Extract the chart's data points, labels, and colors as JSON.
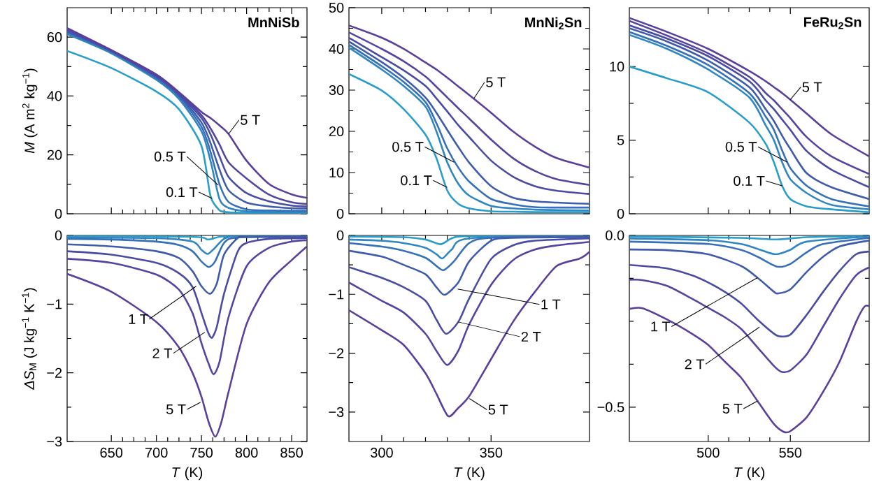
{
  "chart_data": [
    {
      "type": "line",
      "title": "MnNiSb",
      "ylabel": "*M* (A m$^{2}$ kg$^{−1}$)",
      "xlim": [
        601,
        867
      ],
      "xticks": [
        650,
        700,
        750,
        800,
        850
      ],
      "ylim": [
        0,
        70
      ],
      "yticks": [
        0,
        20,
        40,
        60
      ],
      "tick_labels": "y",
      "x": [
        601,
        650,
        700,
        725,
        750,
        760,
        770,
        780,
        800,
        825,
        850,
        867
      ],
      "series": [
        {
          "color": "#2a9dc8",
          "values": [
            55.3,
            49.5,
            41.5,
            35.5,
            23,
            6,
            1.2,
            0.5,
            0.3,
            0.2,
            0.2,
            0.2
          ]
        },
        {
          "color": "#2f86c2",
          "values": [
            61.0,
            54.5,
            45.5,
            39.0,
            28.0,
            18.0,
            5.0,
            2.0,
            0.8,
            0.6,
            0.5,
            0.5
          ]
        },
        {
          "color": "#3670b8",
          "values": [
            61.5,
            55.0,
            46.0,
            39.8,
            29.5,
            21.0,
            10.0,
            4.0,
            1.5,
            1.1,
            1.0,
            1.0
          ]
        },
        {
          "color": "#3f5bab",
          "values": [
            62.0,
            55.2,
            46.5,
            40.3,
            31.0,
            24.0,
            15.0,
            8.0,
            3.8,
            2.5,
            1.9,
            1.8
          ]
        },
        {
          "color": "#4a4ca3",
          "values": [
            62.4,
            55.4,
            46.8,
            40.7,
            32.5,
            27.0,
            19.5,
            12.5,
            7.0,
            4.2,
            2.8,
            2.5
          ]
        },
        {
          "color": "#5445a0",
          "values": [
            62.7,
            55.5,
            47.0,
            41.0,
            33.5,
            29.0,
            23.5,
            17.5,
            12.0,
            6.5,
            3.9,
            3.3
          ]
        },
        {
          "color": "#5b3f9c",
          "values": [
            63.1,
            55.6,
            47.3,
            41.3,
            34.6,
            32.5,
            30.0,
            27.1,
            18.0,
            10.1,
            6.6,
            5.4
          ]
        }
      ],
      "annotations": [
        {
          "text": "5 T",
          "x": 780,
          "y": 27.1
        },
        {
          "text": "0.5 T",
          "x": 768.7,
          "y": 9.7
        },
        {
          "text": "0.1 T",
          "x": 761.7,
          "y": 5.2
        }
      ]
    },
    {
      "type": "line",
      "title": "MnNi$_{2}$Sn",
      "xlim": [
        285,
        395
      ],
      "xticks": [
        300,
        350
      ],
      "ylim": [
        0,
        50
      ],
      "yticks": [
        0,
        10,
        20,
        30,
        40,
        50
      ],
      "tick_labels": "y",
      "x": [
        285,
        300,
        310,
        320,
        325,
        330,
        335,
        340,
        350,
        360,
        370,
        380,
        395
      ],
      "series": [
        {
          "color": "#2a9dc8",
          "values": [
            33.9,
            29.9,
            25.4,
            19.2,
            13.5,
            5.6,
            2.4,
            1.3,
            0.6,
            0.5,
            0.4,
            0.4,
            0.4
          ]
        },
        {
          "color": "#2f86c2",
          "values": [
            40.3,
            35.0,
            31.0,
            26.0,
            20.0,
            12.4,
            7.3,
            4.4,
            1.9,
            1.3,
            1.0,
            0.9,
            0.8
          ]
        },
        {
          "color": "#3670b8",
          "values": [
            41.0,
            35.8,
            32.0,
            27.1,
            22.0,
            15.8,
            11.2,
            7.8,
            3.6,
            2.3,
            1.6,
            1.5,
            1.5
          ]
        },
        {
          "color": "#3f5bab",
          "values": [
            41.8,
            36.8,
            33.0,
            28.2,
            24.5,
            20.3,
            16.2,
            12.4,
            6.7,
            3.9,
            3.0,
            2.7,
            2.4
          ]
        },
        {
          "color": "#4a4ca3",
          "values": [
            42.7,
            38.0,
            34.8,
            31.0,
            28.0,
            24.8,
            21.5,
            18.6,
            12.9,
            9.0,
            6.7,
            5.6,
            4.8
          ]
        },
        {
          "color": "#5445a0",
          "values": [
            44.0,
            40.0,
            37.0,
            33.3,
            30.8,
            28.2,
            25.6,
            23.1,
            18.0,
            13.5,
            10.4,
            8.4,
            7.0
          ]
        },
        {
          "color": "#5b3f9c",
          "values": [
            45.7,
            42.7,
            40.0,
            36.7,
            35.0,
            33.0,
            30.9,
            28.8,
            24.5,
            20.0,
            16.3,
            13.5,
            11.2
          ]
        }
      ],
      "annotations": [
        {
          "text": "5 T",
          "x": 342.2,
          "y": 28.0
        },
        {
          "text": "0.5 T",
          "x": 333.1,
          "y": 12.5
        },
        {
          "text": "0.1 T",
          "x": 329.9,
          "y": 6.4
        }
      ]
    },
    {
      "type": "line",
      "title": "FeRu$_{2}$Sn",
      "xlim": [
        452,
        598
      ],
      "xticks": [
        500,
        550
      ],
      "ylim": [
        0,
        14
      ],
      "yticks": [
        0,
        5,
        10
      ],
      "tick_labels": "y",
      "x": [
        452,
        475,
        500,
        525,
        535,
        540,
        545,
        550,
        560,
        575,
        598
      ],
      "series": [
        {
          "color": "#2a9dc8",
          "values": [
            10.0,
            9.2,
            8.25,
            6.2,
            4.75,
            3.5,
            1.9,
            1.0,
            0.5,
            0.3,
            0.1
          ]
        },
        {
          "color": "#2f86c2",
          "values": [
            12.15,
            11.2,
            9.8,
            7.9,
            6.0,
            5.0,
            3.5,
            2.35,
            1.4,
            0.6,
            0.3
          ]
        },
        {
          "color": "#3670b8",
          "values": [
            12.35,
            11.4,
            10.1,
            8.2,
            6.6,
            5.7,
            4.3,
            3.1,
            1.9,
            1.0,
            0.5
          ]
        },
        {
          "color": "#3f5bab",
          "values": [
            12.6,
            11.7,
            10.4,
            8.6,
            7.1,
            6.3,
            5.3,
            4.4,
            2.75,
            1.8,
            1.0
          ]
        },
        {
          "color": "#4a4ca3",
          "values": [
            12.8,
            11.9,
            10.7,
            9.0,
            7.7,
            7.1,
            6.4,
            5.7,
            4.25,
            3.0,
            1.8
          ]
        },
        {
          "color": "#5445a0",
          "values": [
            13.1,
            12.1,
            10.9,
            9.3,
            8.2,
            7.7,
            7.1,
            6.5,
            5.2,
            3.9,
            2.7
          ]
        },
        {
          "color": "#5b3f9c",
          "values": [
            13.3,
            12.35,
            11.2,
            9.7,
            9.0,
            8.6,
            8.2,
            7.75,
            6.8,
            5.4,
            3.9
          ]
        }
      ],
      "annotations": [
        {
          "text": "5 T",
          "x": 550,
          "y": 7.75
        },
        {
          "text": "0.5 T",
          "x": 548.2,
          "y": 3.5
        },
        {
          "text": "0.1 T",
          "x": 545,
          "y": 1.9
        }
      ]
    },
    {
      "type": "line",
      "xlabel": "*T* (K)",
      "ylabel": "*ΔS*$_{M}$ (J kg$^{−1}$ K$^{−1}$)",
      "xlim": [
        601,
        867
      ],
      "xticks": [
        650,
        700,
        750,
        800,
        850
      ],
      "ylim": [
        -3,
        0
      ],
      "yticks": [
        {
          "value": -3,
          "label": "−3"
        },
        {
          "value": -2,
          "label": "−2"
        },
        {
          "value": -1,
          "label": "−1"
        },
        0
      ],
      "series": [
        {
          "color": "#2a9dc8",
          "x": [
            601,
            740,
            757,
            770,
            790,
            867
          ],
          "values": [
            -0.01,
            -0.02,
            -0.06,
            -0.02,
            -0.01,
            -0.01
          ]
        },
        {
          "color": "#2f86c2",
          "x": [
            601,
            700,
            740,
            750,
            757,
            765,
            775,
            790,
            867
          ],
          "values": [
            -0.03,
            -0.04,
            -0.09,
            -0.21,
            -0.27,
            -0.18,
            -0.05,
            -0.01,
            -0.01
          ]
        },
        {
          "color": "#3670b8",
          "x": [
            601,
            650,
            700,
            725,
            740,
            750,
            758,
            765,
            775,
            790,
            867
          ],
          "values": [
            -0.05,
            -0.06,
            -0.09,
            -0.14,
            -0.23,
            -0.38,
            -0.46,
            -0.38,
            -0.11,
            -0.03,
            -0.02
          ]
        },
        {
          "color": "#3f5bab",
          "x": [
            601,
            650,
            700,
            725,
            740,
            750,
            759.6,
            767,
            775,
            790,
            800,
            867
          ],
          "values": [
            -0.13,
            -0.16,
            -0.23,
            -0.33,
            -0.52,
            -0.74,
            -0.85,
            -0.7,
            -0.28,
            -0.04,
            -0.02,
            -0.02
          ]
        },
        {
          "color": "#4a4ca3",
          "x": [
            601,
            650,
            700,
            725,
            740,
            750,
            757,
            761.5,
            767,
            775,
            790,
            800,
            825,
            867
          ],
          "values": [
            -0.23,
            -0.28,
            -0.4,
            -0.55,
            -0.75,
            -1.13,
            -1.4,
            -1.49,
            -1.33,
            -0.85,
            -0.24,
            -0.11,
            -0.05,
            -0.04
          ]
        },
        {
          "color": "#5445a0",
          "x": [
            601,
            650,
            700,
            725,
            740,
            750,
            758,
            763.5,
            770,
            780,
            800,
            825,
            850,
            867
          ],
          "values": [
            -0.34,
            -0.4,
            -0.57,
            -0.79,
            -1.13,
            -1.57,
            -1.87,
            -2.02,
            -1.84,
            -1.19,
            -0.45,
            -0.18,
            -0.09,
            -0.07
          ]
        },
        {
          "color": "#5b3f9c",
          "x": [
            601,
            650,
            700,
            725,
            740,
            750,
            758,
            765.3,
            772,
            780,
            800,
            825,
            850,
            867
          ],
          "values": [
            -0.56,
            -0.82,
            -1.26,
            -1.63,
            -2.0,
            -2.35,
            -2.72,
            -2.93,
            -2.72,
            -2.28,
            -1.29,
            -0.68,
            -0.36,
            -0.16
          ]
        }
      ],
      "annotations": [
        {
          "text": "1 T",
          "x": 744.1,
          "y": -0.74
        },
        {
          "text": "2 T",
          "x": 753.7,
          "y": -1.41
        },
        {
          "text": "5 T",
          "x": 748.8,
          "y": -2.43
        }
      ]
    },
    {
      "type": "line",
      "xlabel": "*T* (K)",
      "xlim": [
        285,
        395
      ],
      "xticks": [
        300,
        350
      ],
      "ylim": [
        -3.5,
        0
      ],
      "yticks": [
        {
          "value": -3,
          "label": "−3"
        },
        {
          "value": -2,
          "label": "−2"
        },
        {
          "value": -1,
          "label": "−1"
        },
        0
      ],
      "series": [
        {
          "color": "#2a9dc8",
          "x": [
            285,
            310,
            320,
            326.9,
            332,
            340,
            395
          ],
          "values": [
            -0.02,
            -0.03,
            -0.07,
            -0.15,
            -0.05,
            -0.01,
            -0.01
          ]
        },
        {
          "color": "#2f86c2",
          "x": [
            285,
            300,
            310,
            320,
            325,
            327.8,
            332,
            340,
            395
          ],
          "values": [
            -0.07,
            -0.09,
            -0.13,
            -0.21,
            -0.32,
            -0.39,
            -0.24,
            -0.05,
            -0.01
          ]
        },
        {
          "color": "#3670b8",
          "x": [
            285,
            300,
            310,
            320,
            325,
            328.3,
            333,
            340,
            350,
            395
          ],
          "values": [
            -0.13,
            -0.19,
            -0.26,
            -0.38,
            -0.52,
            -0.59,
            -0.44,
            -0.13,
            -0.04,
            -0.02
          ]
        },
        {
          "color": "#3f5bab",
          "x": [
            285,
            300,
            310,
            320,
            325,
            328.8,
            335,
            340,
            350,
            360,
            395
          ],
          "values": [
            -0.26,
            -0.36,
            -0.5,
            -0.66,
            -0.88,
            -1.01,
            -0.8,
            -0.44,
            -0.09,
            -0.04,
            -0.03
          ]
        },
        {
          "color": "#4a4ca3",
          "x": [
            285,
            300,
            310,
            320,
            325,
            329.4,
            335,
            340,
            350,
            360,
            370,
            395
          ],
          "values": [
            -0.54,
            -0.72,
            -0.88,
            -1.11,
            -1.43,
            -1.67,
            -1.47,
            -1.07,
            -0.4,
            -0.17,
            -0.09,
            -0.05
          ]
        },
        {
          "color": "#5445a0",
          "x": [
            285,
            300,
            310,
            320,
            325,
            329.9,
            335,
            340,
            350,
            360,
            370,
            380,
            395
          ],
          "values": [
            -0.8,
            -1.11,
            -1.31,
            -1.67,
            -1.96,
            -2.2,
            -1.96,
            -1.51,
            -0.84,
            -0.42,
            -0.24,
            -0.17,
            -0.11
          ]
        },
        {
          "color": "#5b3f9c",
          "x": [
            285,
            300,
            310,
            320,
            325,
            330.4,
            335,
            340,
            350,
            360,
            370,
            380,
            390,
            393,
            395
          ],
          "values": [
            -1.27,
            -1.61,
            -1.86,
            -2.34,
            -2.69,
            -3.07,
            -2.93,
            -2.73,
            -2.1,
            -1.47,
            -0.96,
            -0.52,
            -0.4,
            -0.34,
            -0.28
          ]
        }
      ],
      "annotations": [
        {
          "text": "1 T",
          "x": 334.7,
          "y": -0.91
        },
        {
          "text": "2 T",
          "x": 335,
          "y": -1.47
        },
        {
          "text": "5 T",
          "x": 340.1,
          "y": -2.77
        }
      ]
    },
    {
      "type": "line",
      "xlabel": "*T* (K)",
      "xlim": [
        452,
        598
      ],
      "xticks": [
        500,
        550
      ],
      "ylim": [
        -0.6,
        0
      ],
      "yticks": [
        {
          "value": -0.5,
          "label": "−0.5"
        },
        {
          "value": 0,
          "label": "0.0"
        }
      ],
      "series": [
        {
          "color": "#2a9dc8",
          "x": [
            452,
            520,
            541.1,
            560,
            598
          ],
          "values": [
            -0.003,
            -0.007,
            -0.012,
            -0.005,
            -0.002
          ]
        },
        {
          "color": "#2f86c2",
          "x": [
            452,
            500,
            520,
            530,
            540.8,
            550,
            560,
            598
          ],
          "values": [
            -0.009,
            -0.014,
            -0.025,
            -0.039,
            -0.055,
            -0.042,
            -0.018,
            -0.003
          ]
        },
        {
          "color": "#3670b8",
          "x": [
            452,
            500,
            520,
            530,
            541.8,
            550,
            560,
            570,
            598
          ],
          "values": [
            -0.018,
            -0.025,
            -0.042,
            -0.062,
            -0.091,
            -0.083,
            -0.049,
            -0.025,
            -0.007
          ]
        },
        {
          "color": "#3f5bab",
          "x": [
            452,
            475,
            500,
            520,
            530,
            540,
            542.5,
            550,
            560,
            570,
            580,
            598
          ],
          "values": [
            -0.041,
            -0.043,
            -0.055,
            -0.089,
            -0.123,
            -0.164,
            -0.169,
            -0.157,
            -0.106,
            -0.062,
            -0.032,
            -0.015
          ]
        },
        {
          "color": "#4a4ca3",
          "x": [
            452,
            475,
            490,
            500,
            510,
            520,
            530,
            540,
            543.6,
            550,
            560,
            570,
            580,
            590,
            598
          ],
          "values": [
            -0.086,
            -0.096,
            -0.116,
            -0.137,
            -0.164,
            -0.198,
            -0.245,
            -0.286,
            -0.294,
            -0.289,
            -0.231,
            -0.164,
            -0.103,
            -0.055,
            -0.047
          ]
        },
        {
          "color": "#5445a0",
          "x": [
            452,
            460,
            475,
            490,
            500,
            510,
            520,
            530,
            540,
            544.6,
            550,
            560,
            570,
            580,
            590,
            598
          ],
          "values": [
            -0.129,
            -0.13,
            -0.147,
            -0.184,
            -0.211,
            -0.238,
            -0.272,
            -0.326,
            -0.38,
            -0.397,
            -0.393,
            -0.346,
            -0.265,
            -0.184,
            -0.116,
            -0.093
          ]
        },
        {
          "color": "#5b3f9c",
          "x": [
            452,
            460,
            475,
            490,
            500,
            510,
            520,
            530,
            540,
            546,
            550,
            560,
            570,
            580,
            590,
            595,
            598
          ],
          "values": [
            -0.214,
            -0.212,
            -0.245,
            -0.286,
            -0.319,
            -0.367,
            -0.414,
            -0.482,
            -0.549,
            -0.572,
            -0.57,
            -0.529,
            -0.455,
            -0.367,
            -0.252,
            -0.208,
            -0.206
          ]
        }
      ],
      "annotations": [
        {
          "text": "1 T",
          "x": 530,
          "y": -0.123
        },
        {
          "text": "2 T",
          "x": 531.2,
          "y": -0.267
        },
        {
          "text": "5 T",
          "x": 530,
          "y": -0.482
        }
      ]
    }
  ]
}
